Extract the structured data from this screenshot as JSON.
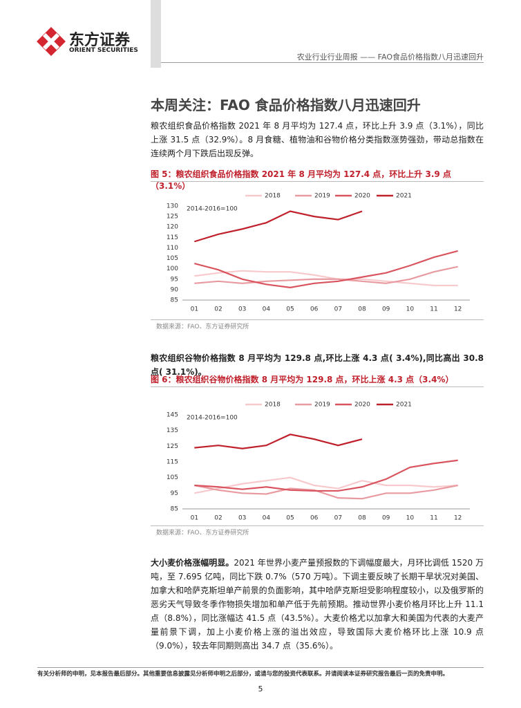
{
  "header": {
    "logo_cn": "东方证券",
    "logo_en": "ORIENT SECURITIES",
    "running_title": "农业行业行业周报 —— FAO食品价格指数八月迅速回升"
  },
  "section_title": "本周关注：FAO 食品价格指数八月迅速回升",
  "paragraphs": [
    "粮农组织食品价格指数 2021 年 8 月平均为 127.4 点，环比上升 3.9 点（3.1%），同比上涨 31.5 点（32.9%）。8 月食糖、植物油和谷物价格分类指数涨势强劲，带动总指数在连续两个月下跌后出现反弹。",
    "粮农组织谷物价格指数 8 月平均为 129.8 点,环比上涨 4.3 点( 3.4%),同比高出 30.8 点( 31.1%)。"
  ],
  "figures": [
    {
      "caption": "图 5：粮农组织食品价格指数 2021 年 8 月平均为 127.4 点，环比上升 3.9 点（3.1%）",
      "source": "数据来源：FAO、东方证券研究所"
    },
    {
      "caption": "图 6：粮农组织谷物价格指数 8 月平均为 129.8 点，环比上涨 4.3 点（3.4%）",
      "source": "数据来源：FAO、东方证券研究所"
    }
  ],
  "chart_data": [
    {
      "type": "line",
      "annotation": "2014-2016=100",
      "categories": [
        "01",
        "02",
        "03",
        "04",
        "05",
        "06",
        "07",
        "08",
        "09",
        "10",
        "11",
        "12"
      ],
      "ylim": [
        85,
        130
      ],
      "yticks": [
        85,
        90,
        95,
        100,
        105,
        110,
        115,
        120,
        125,
        130
      ],
      "series": [
        {
          "name": "2018",
          "color": "#f8c9cc",
          "values": [
            96.5,
            98,
            99,
            98.5,
            98.5,
            97,
            95,
            95,
            94,
            93,
            92,
            92
          ]
        },
        {
          "name": "2019",
          "color": "#e89aa0",
          "values": [
            93,
            94,
            93,
            94,
            94.5,
            95,
            95,
            94,
            93,
            95,
            98.5,
            101
          ]
        },
        {
          "name": "2020",
          "color": "#d9545e",
          "values": [
            102.5,
            99.5,
            95,
            92.5,
            91,
            93,
            94,
            96,
            98,
            101.5,
            105.5,
            108.5
          ]
        },
        {
          "name": "2021",
          "color": "#c0202b",
          "values": [
            113,
            116.5,
            119,
            122,
            127.5,
            125,
            123.5,
            127.5,
            null,
            null,
            null,
            null
          ]
        }
      ]
    },
    {
      "type": "line",
      "annotation": "2014-2016=100",
      "categories": [
        "01",
        "02",
        "03",
        "04",
        "05",
        "06",
        "07",
        "08",
        "09",
        "10",
        "11",
        "12"
      ],
      "ylim": [
        85,
        145
      ],
      "yticks": [
        85,
        95,
        105,
        115,
        125,
        135,
        145
      ],
      "series": [
        {
          "name": "2018",
          "color": "#f8c9cc",
          "values": [
            95,
            98,
            101,
            103,
            105,
            100,
            98,
            103,
            100,
            100,
            99,
            100
          ]
        },
        {
          "name": "2019",
          "color": "#e89aa0",
          "values": [
            100,
            97,
            95,
            94.5,
            98,
            97,
            92,
            91.5,
            95,
            95,
            97,
            100
          ]
        },
        {
          "name": "2020",
          "color": "#d9545e",
          "values": [
            100,
            99,
            97.5,
            99,
            97,
            96.5,
            96.5,
            99,
            104,
            111.5,
            114,
            116
          ]
        },
        {
          "name": "2021",
          "color": "#c0202b",
          "values": [
            124,
            125.5,
            123.5,
            125.5,
            132.5,
            129.5,
            125.5,
            129.5,
            null,
            null,
            null,
            null
          ]
        }
      ]
    }
  ],
  "paragraph3": {
    "lead": "大小麦价格涨幅明显。",
    "body": "2021 年世界小麦产量预报数的下调幅度最大，月环比调低 1520 万吨，至 7.695 亿吨，同比下跌 0.7%（570 万吨）。下调主要反映了长期干旱状况对美国、加拿大和哈萨克斯坦单产前景的负面影响，其中哈萨克斯坦受影响程度较小，以及俄罗斯的恶劣天气导致冬季作物损失增加和单产低于先前预期。推动世界小麦价格月环比上升 11.1 点（8.8%），同比涨幅达 41.5 点（43.5%）。大麦价格尤以加拿大和美国为代表的大麦产量前景下调，加上小麦价格上涨的溢出效应，导致国际大麦价格环比上涨 10.9 点（9.0%），较去年同期则高出 34.7 点（35.6%）。"
  },
  "footer": {
    "disclaimer": "有关分析师的申明，见本报告最后部分。其他重要信息披露见分析师申明之后部分，或请与您的投资代表联系。并请阅读本证券研究报告最后一页的免责申明。",
    "page_number": "5"
  }
}
